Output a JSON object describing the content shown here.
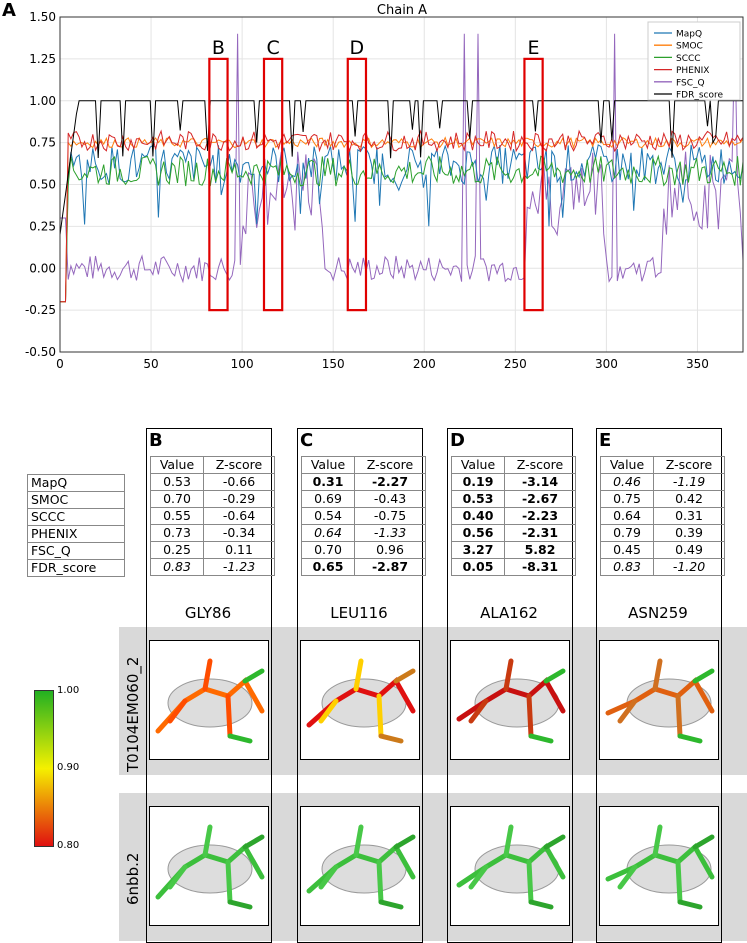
{
  "panel_a_letter": "A",
  "chart_data": {
    "type": "line",
    "title": "Chain A",
    "xlabel": "",
    "ylabel": "",
    "xlim": [
      0,
      375
    ],
    "ylim": [
      -0.5,
      1.5
    ],
    "x_ticks": [
      "0",
      "50",
      "100",
      "150",
      "200",
      "250",
      "300",
      "350"
    ],
    "y_ticks": [
      "-0.50",
      "-0.25",
      "0.00",
      "0.25",
      "0.50",
      "0.75",
      "1.00",
      "1.25",
      "1.50"
    ],
    "grid": true,
    "legend_position": "top-right",
    "series": [
      {
        "name": "MapQ",
        "color": "#1f77b4",
        "baseline": 0.62
      },
      {
        "name": "SMOC",
        "color": "#ff7f0e",
        "baseline": 0.75
      },
      {
        "name": "SCCC",
        "color": "#2ca02c",
        "baseline": 0.58
      },
      {
        "name": "PHENIX",
        "color": "#d62728",
        "baseline": 0.76
      },
      {
        "name": "FSC_Q",
        "color": "#9467bd",
        "baseline": 0.0
      },
      {
        "name": "FDR_score",
        "color": "#000000",
        "baseline": 1.0
      }
    ],
    "highlight_regions": [
      {
        "label": "B",
        "x_range": [
          82,
          92
        ],
        "y_range": [
          -0.25,
          1.25
        ]
      },
      {
        "label": "C",
        "x_range": [
          112,
          122
        ],
        "y_range": [
          -0.25,
          1.25
        ]
      },
      {
        "label": "D",
        "x_range": [
          158,
          168
        ],
        "y_range": [
          -0.25,
          1.25
        ]
      },
      {
        "label": "E",
        "x_range": [
          255,
          265
        ],
        "y_range": [
          -0.25,
          1.25
        ]
      }
    ]
  },
  "row_labels": [
    "MapQ",
    "SMOC",
    "SCCC",
    "PHENIX",
    "FSC_Q",
    "FDR_score"
  ],
  "table_header": {
    "value": "Value",
    "zscore": "Z-score"
  },
  "columns": [
    {
      "letter": "B",
      "residue": "GLY86",
      "rows": [
        {
          "v": "0.53",
          "z": "-0.66",
          "style": ""
        },
        {
          "v": "0.70",
          "z": "-0.29",
          "style": ""
        },
        {
          "v": "0.55",
          "z": "-0.64",
          "style": ""
        },
        {
          "v": "0.73",
          "z": "-0.34",
          "style": ""
        },
        {
          "v": "0.25",
          "z": "0.11",
          "style": ""
        },
        {
          "v": "0.83",
          "z": "-1.23",
          "style": "i"
        }
      ]
    },
    {
      "letter": "C",
      "residue": "LEU116",
      "rows": [
        {
          "v": "0.31",
          "z": "-2.27",
          "style": "b"
        },
        {
          "v": "0.69",
          "z": "-0.43",
          "style": ""
        },
        {
          "v": "0.54",
          "z": "-0.75",
          "style": ""
        },
        {
          "v": "0.64",
          "z": "-1.33",
          "style": "i"
        },
        {
          "v": "0.70",
          "z": "0.96",
          "style": ""
        },
        {
          "v": "0.65",
          "z": "-2.87",
          "style": "b"
        }
      ]
    },
    {
      "letter": "D",
      "residue": "ALA162",
      "rows": [
        {
          "v": "0.19",
          "z": "-3.14",
          "style": "b"
        },
        {
          "v": "0.53",
          "z": "-2.67",
          "style": "b"
        },
        {
          "v": "0.40",
          "z": "-2.23",
          "style": "b"
        },
        {
          "v": "0.56",
          "z": "-2.31",
          "style": "b"
        },
        {
          "v": "3.27",
          "z": "5.82",
          "style": "b"
        },
        {
          "v": "0.05",
          "z": "-8.31",
          "style": "b"
        }
      ]
    },
    {
      "letter": "E",
      "residue": "ASN259",
      "rows": [
        {
          "v": "0.46",
          "z": "-1.19",
          "style": "i"
        },
        {
          "v": "0.75",
          "z": "0.42",
          "style": ""
        },
        {
          "v": "0.64",
          "z": "0.31",
          "style": ""
        },
        {
          "v": "0.79",
          "z": "0.39",
          "style": ""
        },
        {
          "v": "0.45",
          "z": "0.49",
          "style": ""
        },
        {
          "v": "0.83",
          "z": "-1.20",
          "style": "i"
        }
      ]
    }
  ],
  "model_labels": {
    "model1": "T0104EM060_2",
    "model2": "6nbb.2"
  },
  "colorbar": {
    "max": "1.00",
    "mid": "0.90",
    "min": "0.80",
    "colors": {
      "high": "#22b022",
      "mid": "#f5f000",
      "low": "#e01010"
    }
  }
}
